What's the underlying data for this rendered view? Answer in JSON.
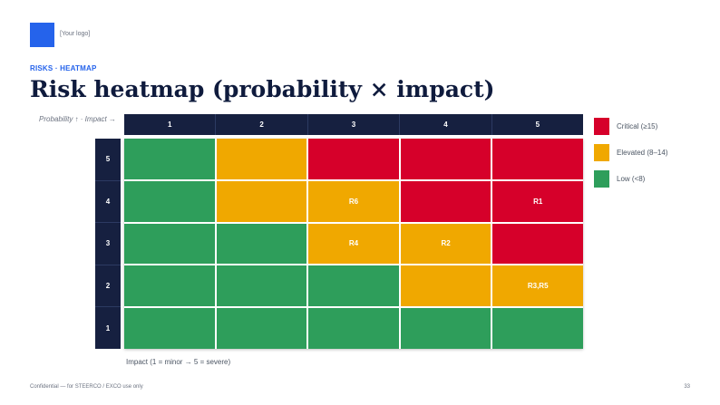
{
  "logo": {
    "placeholder": "[Your logo]"
  },
  "eyebrow": "RISKS · HEATMAP",
  "title": "Risk heatmap (probability × impact)",
  "axis_note": "Probability ↑  ·  Impact →",
  "impact_headers": [
    "1",
    "2",
    "3",
    "4",
    "5"
  ],
  "probability_headers": [
    "5",
    "4",
    "3",
    "2",
    "1"
  ],
  "grid": [
    [
      {
        "level": "low",
        "label": ""
      },
      {
        "level": "elevated",
        "label": ""
      },
      {
        "level": "critical",
        "label": ""
      },
      {
        "level": "critical",
        "label": ""
      },
      {
        "level": "critical",
        "label": ""
      }
    ],
    [
      {
        "level": "low",
        "label": ""
      },
      {
        "level": "elevated",
        "label": ""
      },
      {
        "level": "elevated",
        "label": "R6"
      },
      {
        "level": "critical",
        "label": ""
      },
      {
        "level": "critical",
        "label": "R1"
      }
    ],
    [
      {
        "level": "low",
        "label": ""
      },
      {
        "level": "low",
        "label": ""
      },
      {
        "level": "elevated",
        "label": "R4"
      },
      {
        "level": "elevated",
        "label": "R2"
      },
      {
        "level": "critical",
        "label": ""
      }
    ],
    [
      {
        "level": "low",
        "label": ""
      },
      {
        "level": "low",
        "label": ""
      },
      {
        "level": "low",
        "label": ""
      },
      {
        "level": "elevated",
        "label": ""
      },
      {
        "level": "elevated",
        "label": "R3,R5"
      }
    ],
    [
      {
        "level": "low",
        "label": ""
      },
      {
        "level": "low",
        "label": ""
      },
      {
        "level": "low",
        "label": ""
      },
      {
        "level": "low",
        "label": ""
      },
      {
        "level": "low",
        "label": ""
      }
    ]
  ],
  "legend": [
    {
      "level": "critical",
      "label": "Critical (≥15)",
      "color": "#d6002a"
    },
    {
      "level": "elevated",
      "label": "Elevated (8–14)",
      "color": "#f0a800"
    },
    {
      "level": "low",
      "label": "Low (<8)",
      "color": "#2e9e5b"
    }
  ],
  "x_axis_note": "Impact (1 = minor → 5 = severe)",
  "footer": "Confidential — for STEERCO / EXCO use only",
  "page_number": "33",
  "colors": {
    "brand": "#2563eb",
    "header_bg": "#162040",
    "title": "#0f1b3d"
  }
}
